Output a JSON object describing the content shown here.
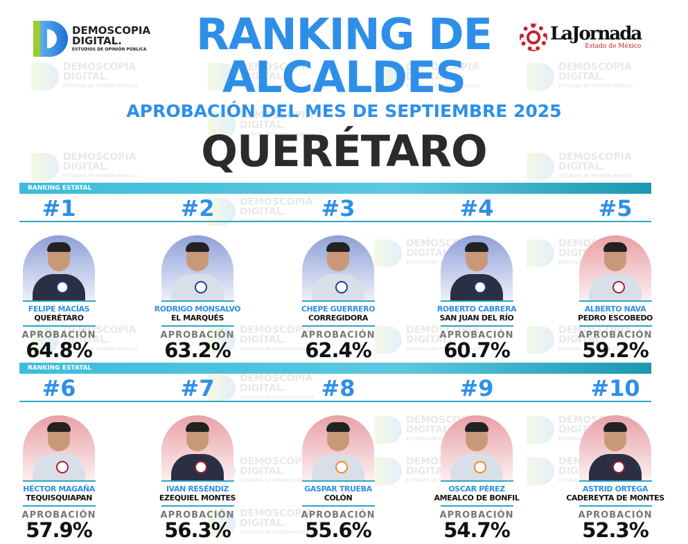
{
  "header": {
    "title_line1": "RANKING DE",
    "title_line2": "ALCALDES",
    "subtitle": "APROBACIÓN DEL MES DE SEPTIEMBRE 2025",
    "state": "QUERÉTARO"
  },
  "logos": {
    "demoscopia": {
      "line1": "DEMOSCOPIA",
      "line2": "DIGITAL.",
      "tagline": "ESTUDIOS DE OPINIÓN PÚBLICA"
    },
    "jornada": {
      "name": "LaJornada",
      "sub": "Estado de México"
    }
  },
  "section_label": "RANKING ESTATAL",
  "approval_label": "APROBACIÓN",
  "colors": {
    "accent": "#2e8fe8",
    "bar": "#3cbcdb",
    "pan": "#1a3d8f",
    "morena": "#a31f34",
    "pt": "#e0201b",
    "mc": "#f08a1c"
  },
  "mayors": [
    {
      "rank": "#1",
      "name": "FELIPE MACÍAS",
      "municipality": "QUERÉTARO",
      "approval": "64.8%",
      "party_icon": "pan-logo",
      "bg": "#8fa0d8"
    },
    {
      "rank": "#2",
      "name": "RODRIGO MONSALVO",
      "municipality": "EL MARQUÉS",
      "approval": "63.2%",
      "party_icon": "pan-logo",
      "bg": "#8fa0d8"
    },
    {
      "rank": "#3",
      "name": "CHEPE GUERRERO",
      "municipality": "CORREGIDORA",
      "approval": "62.4%",
      "party_icon": "pan-logo",
      "bg": "#8fa0d8"
    },
    {
      "rank": "#4",
      "name": "ROBERTO CABRERA",
      "municipality": "SAN JUAN DEL RÍO",
      "approval": "60.7%",
      "party_icon": "pan-logo",
      "bg": "#8fa0d8"
    },
    {
      "rank": "#5",
      "name": "ALBERTO NAVA",
      "municipality": "PEDRO ESCOBEDO",
      "approval": "59.2%",
      "party_icon": "morena-logo",
      "bg": "#e8a0a6"
    },
    {
      "rank": "#6",
      "name": "HÉCTOR MAGAÑA",
      "municipality": "TEQUISQUIAPAN",
      "approval": "57.9%",
      "party_icon": "morena-pt-logo",
      "bg": "#e8a0a6"
    },
    {
      "rank": "#7",
      "name": "IVAN RESÉNDIZ",
      "municipality": "EZEQUIEL MONTES",
      "approval": "56.3%",
      "party_icon": "morena-pt-logo",
      "bg": "#e8a0a6"
    },
    {
      "rank": "#8",
      "name": "GASPAR TRUEBA",
      "municipality": "COLÓN",
      "approval": "55.6%",
      "party_icon": "mc-morena-logo",
      "bg": "#e8a0a6"
    },
    {
      "rank": "#9",
      "name": "OSCAR PÉREZ",
      "municipality": "AMEALCO DE BONFIL",
      "approval": "54.7%",
      "party_icon": "mc-morena-logo",
      "bg": "#e8a0a6"
    },
    {
      "rank": "#10",
      "name": "ASTRID ORTEGA",
      "municipality": "CADEREYTA DE MONTES",
      "approval": "52.3%",
      "party_icon": "morena-logo",
      "bg": "#e8a0a6"
    }
  ]
}
